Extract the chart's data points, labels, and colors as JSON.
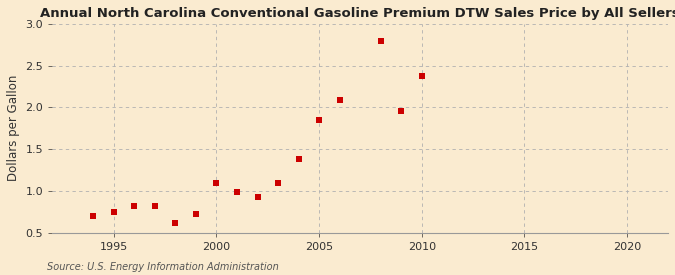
{
  "title": "Annual North Carolina Conventional Gasoline Premium DTW Sales Price by All Sellers",
  "ylabel": "Dollars per Gallon",
  "source": "Source: U.S. Energy Information Administration",
  "x_data": [
    1994,
    1995,
    1996,
    1997,
    1998,
    1999,
    2000,
    2001,
    2002,
    2003,
    2004,
    2005,
    2006,
    2008,
    2009,
    2010
  ],
  "y_data": [
    0.7,
    0.75,
    0.82,
    0.82,
    0.62,
    0.72,
    1.09,
    0.98,
    0.92,
    1.09,
    1.38,
    1.85,
    2.09,
    2.8,
    1.96,
    2.38
  ],
  "marker_color": "#cc0000",
  "marker": "s",
  "marker_size": 14,
  "xlim": [
    1992,
    2022
  ],
  "ylim": [
    0.5,
    3.0
  ],
  "xticks": [
    1995,
    2000,
    2005,
    2010,
    2015,
    2020
  ],
  "yticks": [
    0.5,
    1.0,
    1.5,
    2.0,
    2.5,
    3.0
  ],
  "grid_color": "#b0b0b0",
  "background_color": "#faebd0",
  "title_fontsize": 9.5,
  "label_fontsize": 8.5,
  "tick_fontsize": 8,
  "source_fontsize": 7
}
